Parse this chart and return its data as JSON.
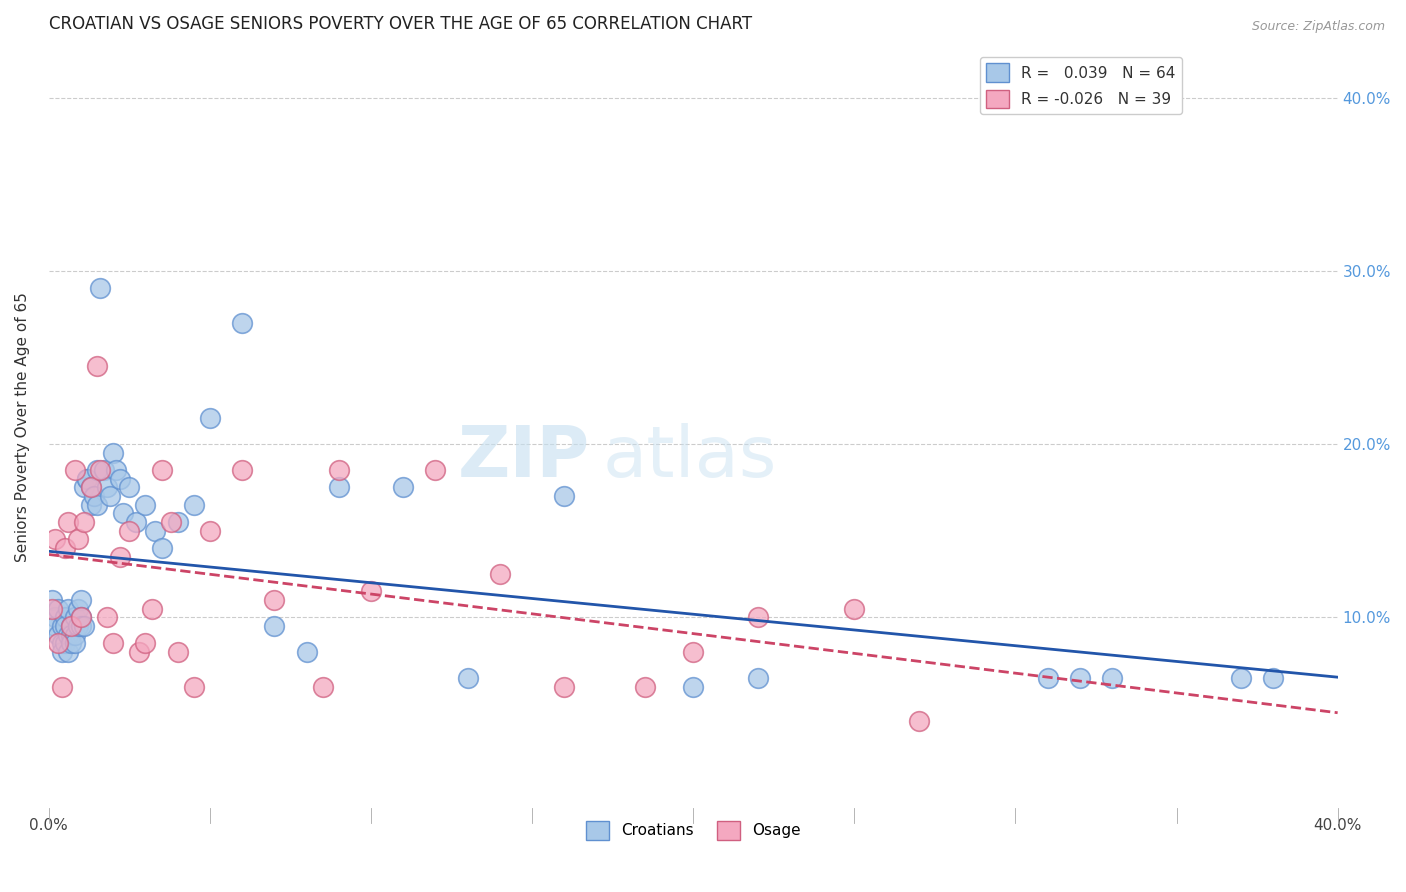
{
  "title": "CROATIAN VS OSAGE SENIORS POVERTY OVER THE AGE OF 65 CORRELATION CHART",
  "source": "Source: ZipAtlas.com",
  "ylabel": "Seniors Poverty Over the Age of 65",
  "xlim": [
    0.0,
    0.4
  ],
  "ylim": [
    -0.01,
    0.43
  ],
  "xticks": [
    0.0,
    0.05,
    0.1,
    0.15,
    0.2,
    0.25,
    0.3,
    0.35,
    0.4
  ],
  "xtick_labels_show": [
    "0.0%",
    "",
    "",
    "",
    "",
    "",
    "",
    "",
    "40.0%"
  ],
  "yticks_right": [
    0.1,
    0.2,
    0.3,
    0.4
  ],
  "ytick_right_labels": [
    "10.0%",
    "20.0%",
    "30.0%",
    "40.0%"
  ],
  "croatian_color": "#a8c8e8",
  "osage_color": "#f4a8c0",
  "croatian_edge_color": "#6090d0",
  "osage_edge_color": "#d06080",
  "croatian_line_color": "#2255aa",
  "osage_line_color": "#cc4466",
  "legend_R_croatian": "0.039",
  "legend_N_croatian": "64",
  "legend_R_osage": "-0.026",
  "legend_N_osage": "39",
  "croatian_x": [
    0.001,
    0.002,
    0.002,
    0.003,
    0.003,
    0.004,
    0.004,
    0.004,
    0.005,
    0.005,
    0.005,
    0.006,
    0.006,
    0.006,
    0.007,
    0.007,
    0.007,
    0.008,
    0.008,
    0.008,
    0.009,
    0.009,
    0.01,
    0.01,
    0.01,
    0.011,
    0.011,
    0.012,
    0.012,
    0.013,
    0.013,
    0.014,
    0.015,
    0.015,
    0.016,
    0.017,
    0.018,
    0.019,
    0.02,
    0.021,
    0.022,
    0.023,
    0.025,
    0.027,
    0.03,
    0.033,
    0.035,
    0.04,
    0.045,
    0.05,
    0.06,
    0.07,
    0.08,
    0.09,
    0.11,
    0.13,
    0.16,
    0.2,
    0.22,
    0.31,
    0.32,
    0.33,
    0.37,
    0.38
  ],
  "croatian_y": [
    0.11,
    0.1,
    0.095,
    0.105,
    0.09,
    0.085,
    0.08,
    0.095,
    0.1,
    0.095,
    0.085,
    0.105,
    0.09,
    0.08,
    0.095,
    0.09,
    0.085,
    0.1,
    0.09,
    0.085,
    0.095,
    0.105,
    0.11,
    0.1,
    0.095,
    0.095,
    0.175,
    0.18,
    0.18,
    0.175,
    0.165,
    0.17,
    0.185,
    0.165,
    0.29,
    0.185,
    0.175,
    0.17,
    0.195,
    0.185,
    0.18,
    0.16,
    0.175,
    0.155,
    0.165,
    0.15,
    0.14,
    0.155,
    0.165,
    0.215,
    0.27,
    0.095,
    0.08,
    0.175,
    0.175,
    0.065,
    0.17,
    0.06,
    0.065,
    0.065,
    0.065,
    0.065,
    0.065,
    0.065
  ],
  "osage_x": [
    0.001,
    0.002,
    0.003,
    0.004,
    0.005,
    0.006,
    0.007,
    0.008,
    0.009,
    0.01,
    0.011,
    0.013,
    0.015,
    0.016,
    0.018,
    0.02,
    0.022,
    0.025,
    0.028,
    0.03,
    0.032,
    0.035,
    0.038,
    0.04,
    0.045,
    0.05,
    0.06,
    0.07,
    0.085,
    0.09,
    0.1,
    0.12,
    0.14,
    0.16,
    0.185,
    0.2,
    0.22,
    0.25,
    0.27
  ],
  "osage_y": [
    0.105,
    0.145,
    0.085,
    0.06,
    0.14,
    0.155,
    0.095,
    0.185,
    0.145,
    0.1,
    0.155,
    0.175,
    0.245,
    0.185,
    0.1,
    0.085,
    0.135,
    0.15,
    0.08,
    0.085,
    0.105,
    0.185,
    0.155,
    0.08,
    0.06,
    0.15,
    0.185,
    0.11,
    0.06,
    0.185,
    0.115,
    0.185,
    0.125,
    0.06,
    0.06,
    0.08,
    0.1,
    0.105,
    0.04
  ],
  "watermark_zip": "ZIP",
  "watermark_atlas": "atlas",
  "background_color": "#ffffff",
  "grid_color": "#cccccc",
  "scatter_size": 200
}
